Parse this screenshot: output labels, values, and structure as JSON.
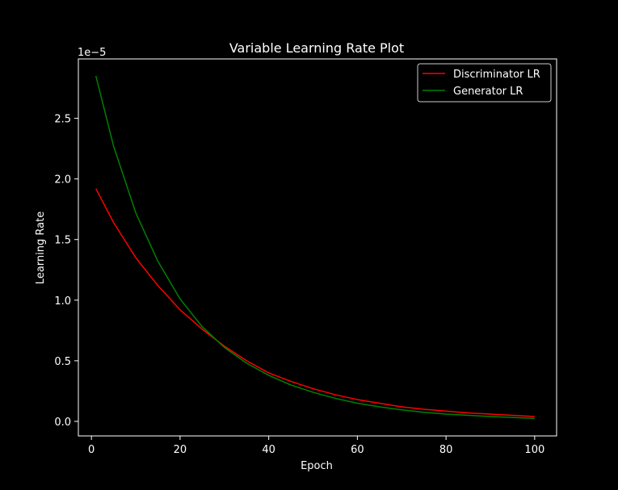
{
  "chart_data": {
    "type": "line",
    "title": "Variable Learning Rate Plot",
    "xlabel": "Epoch",
    "ylabel": "Learning Rate",
    "y_offset_label": "1e−5",
    "xlim": [
      -2.95,
      104.95
    ],
    "ylim": [
      -0.12,
      2.99
    ],
    "x_ticks": [
      0,
      20,
      40,
      60,
      80,
      100
    ],
    "y_ticks": [
      0.0,
      0.5,
      1.0,
      1.5,
      2.0,
      2.5
    ],
    "y_tick_labels": [
      "0.0",
      "0.5",
      "1.0",
      "1.5",
      "2.0",
      "2.5"
    ],
    "grid": false,
    "legend_position": "top-right",
    "background": "#000000",
    "foreground": "#ffffff",
    "x": [
      1,
      5,
      10,
      15,
      20,
      25,
      30,
      35,
      40,
      45,
      50,
      55,
      60,
      65,
      70,
      75,
      80,
      85,
      90,
      95,
      100
    ],
    "series": [
      {
        "name": "Discriminator LR",
        "color": "#ff0000",
        "values": [
          1.92,
          1.64,
          1.35,
          1.12,
          0.92,
          0.76,
          0.62,
          0.5,
          0.4,
          0.33,
          0.27,
          0.22,
          0.18,
          0.15,
          0.12,
          0.1,
          0.085,
          0.07,
          0.06,
          0.05,
          0.04
        ]
      },
      {
        "name": "Generator LR",
        "color": "#008000",
        "values": [
          2.85,
          2.27,
          1.72,
          1.32,
          1.01,
          0.78,
          0.61,
          0.48,
          0.38,
          0.3,
          0.24,
          0.19,
          0.15,
          0.12,
          0.095,
          0.075,
          0.06,
          0.05,
          0.04,
          0.032,
          0.025
        ]
      }
    ]
  }
}
